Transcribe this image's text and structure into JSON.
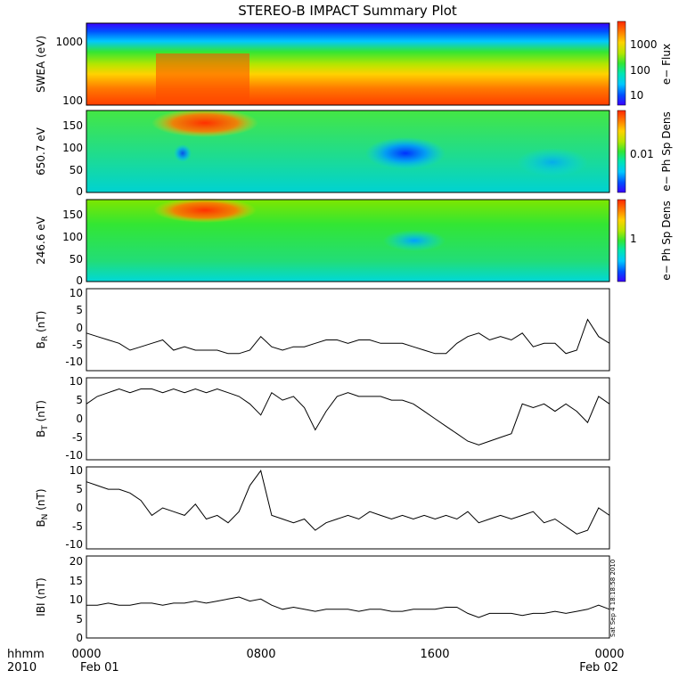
{
  "title": "STEREO-B IMPACT Summary Plot",
  "footer": {
    "row1_label": "hhmm",
    "row2_label": "2010",
    "xticks": [
      "0000",
      "0800",
      "1600",
      "0000"
    ],
    "dates": [
      "Feb 01",
      "Feb 02"
    ]
  },
  "timestamp": "Sat Sep  4 18:18:58 2010",
  "colors": {
    "spectrogram_scale": [
      "#3b00ff",
      "#0050ff",
      "#00c8ff",
      "#00e6b0",
      "#33e633",
      "#b4e600",
      "#ffd200",
      "#ff7800",
      "#ff2800"
    ],
    "line": "#000000"
  },
  "chart_data": [
    {
      "type": "heatmap",
      "ylabel": "SWEA (eV)",
      "yscale": "log",
      "ylim": [
        100,
        2000
      ],
      "yticks": [
        "1000",
        "100"
      ],
      "colorbar_label": "e− Flux",
      "colorbar_ticks": [
        "1000",
        "100",
        "10"
      ],
      "xlim_hours": [
        0,
        24
      ]
    },
    {
      "type": "heatmap",
      "ylabel": "650.7 eV",
      "ylim": [
        0,
        180
      ],
      "yticks": [
        "150",
        "100",
        "50",
        "0"
      ],
      "colorbar_label": "e− Ph Sp Dens",
      "colorbar_ticks": [
        "0.01"
      ],
      "xlim_hours": [
        0,
        24
      ]
    },
    {
      "type": "heatmap",
      "ylabel": "246.6 eV",
      "ylim": [
        0,
        180
      ],
      "yticks": [
        "150",
        "100",
        "50",
        "0"
      ],
      "colorbar_label": "e− Ph Sp Dens",
      "colorbar_ticks": [
        "1"
      ],
      "xlim_hours": [
        0,
        24
      ]
    },
    {
      "type": "line",
      "ylabel": "B",
      "ylabel_sub": "R",
      "ylabel_unit": " (nT)",
      "ylim": [
        -12,
        12
      ],
      "yticks": [
        "10",
        "5",
        "0",
        "-5",
        "-10"
      ],
      "x": [
        0,
        0.5,
        1,
        1.5,
        2,
        2.5,
        3,
        3.5,
        4,
        4.5,
        5,
        5.5,
        6,
        6.5,
        7,
        7.5,
        8,
        8.5,
        9,
        9.5,
        10,
        10.5,
        11,
        11.5,
        12,
        12.5,
        13,
        13.5,
        14,
        14.5,
        15,
        15.5,
        16,
        16.5,
        17,
        17.5,
        18,
        18.5,
        19,
        19.5,
        20,
        20.5,
        21,
        21.5,
        22,
        22.5,
        23,
        23.5,
        24
      ],
      "y": [
        -1,
        -2,
        -3,
        -4,
        -6,
        -5,
        -4,
        -3,
        -6,
        -5,
        -6,
        -6,
        -6,
        -7,
        -7,
        -6,
        -2,
        -5,
        -6,
        -5,
        -5,
        -4,
        -3,
        -3,
        -4,
        -3,
        -3,
        -4,
        -4,
        -4,
        -5,
        -6,
        -7,
        -7,
        -4,
        -2,
        -1,
        -3,
        -2,
        -3,
        -1,
        -5,
        -4,
        -4,
        -7,
        -6,
        3,
        -2,
        -4
      ]
    },
    {
      "type": "line",
      "ylabel": "B",
      "ylabel_sub": "T",
      "ylabel_unit": " (nT)",
      "ylim": [
        -11,
        11
      ],
      "yticks": [
        "10",
        "5",
        "0",
        "-5",
        "-10"
      ],
      "x": [
        0,
        0.5,
        1,
        1.5,
        2,
        2.5,
        3,
        3.5,
        4,
        4.5,
        5,
        5.5,
        6,
        6.5,
        7,
        7.5,
        8,
        8.5,
        9,
        9.5,
        10,
        10.5,
        11,
        11.5,
        12,
        12.5,
        13,
        13.5,
        14,
        14.5,
        15,
        15.5,
        16,
        16.5,
        17,
        17.5,
        18,
        18.5,
        19,
        19.5,
        20,
        20.5,
        21,
        21.5,
        22,
        22.5,
        23,
        23.5,
        24
      ],
      "y": [
        4,
        6,
        7,
        8,
        7,
        8,
        8,
        7,
        8,
        7,
        8,
        7,
        8,
        7,
        6,
        4,
        1,
        7,
        5,
        6,
        3,
        -3,
        2,
        6,
        7,
        6,
        6,
        6,
        5,
        5,
        4,
        2,
        0,
        -2,
        -4,
        -6,
        -7,
        -6,
        -5,
        -4,
        4,
        3,
        4,
        2,
        4,
        2,
        -1,
        6,
        4
      ]
    },
    {
      "type": "line",
      "ylabel": "B",
      "ylabel_sub": "N",
      "ylabel_unit": " (nT)",
      "ylim": [
        -11,
        11
      ],
      "yticks": [
        "10",
        "5",
        "0",
        "-5",
        "-10"
      ],
      "x": [
        0,
        0.5,
        1,
        1.5,
        2,
        2.5,
        3,
        3.5,
        4,
        4.5,
        5,
        5.5,
        6,
        6.5,
        7,
        7.5,
        8,
        8.5,
        9,
        9.5,
        10,
        10.5,
        11,
        11.5,
        12,
        12.5,
        13,
        13.5,
        14,
        14.5,
        15,
        15.5,
        16,
        16.5,
        17,
        17.5,
        18,
        18.5,
        19,
        19.5,
        20,
        20.5,
        21,
        21.5,
        22,
        22.5,
        23,
        23.5,
        24
      ],
      "y": [
        7,
        6,
        5,
        5,
        4,
        2,
        -2,
        0,
        -1,
        -2,
        1,
        -3,
        -2,
        -4,
        -1,
        6,
        10,
        -2,
        -3,
        -4,
        -3,
        -6,
        -4,
        -3,
        -2,
        -3,
        -1,
        -2,
        -3,
        -2,
        -3,
        -2,
        -3,
        -2,
        -3,
        -1,
        -4,
        -3,
        -2,
        -3,
        -2,
        -1,
        -4,
        -3,
        -5,
        -7,
        -6,
        0,
        -2
      ]
    },
    {
      "type": "line",
      "ylabel": "IBI (nT)",
      "ylim": [
        0,
        20
      ],
      "yticks": [
        "20",
        "15",
        "10",
        "5",
        "0"
      ],
      "x": [
        0,
        0.5,
        1,
        1.5,
        2,
        2.5,
        3,
        3.5,
        4,
        4.5,
        5,
        5.5,
        6,
        6.5,
        7,
        7.5,
        8,
        8.5,
        9,
        9.5,
        10,
        10.5,
        11,
        11.5,
        12,
        12.5,
        13,
        13.5,
        14,
        14.5,
        15,
        15.5,
        16,
        16.5,
        17,
        17.5,
        18,
        18.5,
        19,
        19.5,
        20,
        20.5,
        21,
        21.5,
        22,
        22.5,
        23,
        23.5,
        24
      ],
      "y": [
        8,
        8,
        8.5,
        8,
        8,
        8.5,
        8.5,
        8,
        8.5,
        8.5,
        9,
        8.5,
        9,
        9.5,
        10,
        9,
        9.5,
        8,
        7,
        7.5,
        7,
        6.5,
        7,
        7,
        7,
        6.5,
        7,
        7,
        6.5,
        6.5,
        7,
        7,
        7,
        7.5,
        7.5,
        6,
        5,
        6,
        6,
        6,
        5.5,
        6,
        6,
        6.5,
        6,
        6.5,
        7,
        8,
        7
      ]
    }
  ]
}
